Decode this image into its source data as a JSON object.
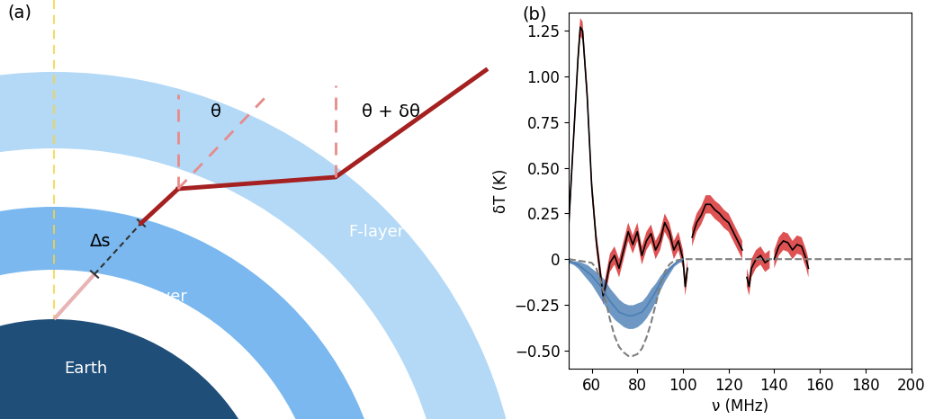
{
  "diagram": {
    "label": "(a)",
    "texts": {
      "earth": "Earth",
      "d_layer": "D-layer",
      "f_layer": "F-layer",
      "path_length": "Δs",
      "angle_in": "θ",
      "angle_out": "θ + δθ"
    }
  },
  "chart_data": {
    "label": "(b)",
    "type": "line",
    "x_label": "ν (MHz)",
    "y_label": "δT (K)",
    "xlim": [
      50,
      200
    ],
    "ylim": [
      -0.6,
      1.35
    ],
    "xticks": [
      60,
      80,
      100,
      120,
      140,
      160,
      180,
      200
    ],
    "yticks": [
      {
        "value": -0.5,
        "label": "−0.50"
      },
      {
        "value": -0.25,
        "label": "−0.25"
      },
      0,
      {
        "value": 0.25,
        "label": "0.25"
      },
      {
        "value": 0.5,
        "label": "0.50"
      },
      {
        "value": 0.75,
        "label": "0.75"
      },
      {
        "value": 1.0,
        "label": "1.00"
      },
      {
        "value": 1.25,
        "label": "1.25"
      }
    ],
    "series": [
      {
        "type": "line",
        "color": "#d62728",
        "error": 0.05,
        "x": [
          50,
          52,
          54,
          55,
          56,
          58,
          60,
          62,
          64,
          65,
          66,
          68,
          70,
          72,
          74,
          76,
          78,
          80,
          82,
          84,
          86,
          88,
          90,
          92,
          94,
          96,
          98,
          100,
          101,
          102,
          103,
          104,
          106,
          108,
          110,
          112,
          114,
          116,
          118,
          120,
          122,
          124,
          126,
          127,
          128,
          129,
          130,
          132,
          134,
          136,
          138,
          139,
          140,
          142,
          144,
          146,
          148,
          150,
          152,
          154,
          155
        ],
        "values": [
          0.2,
          0.65,
          1.1,
          1.27,
          1.25,
          0.9,
          0.4,
          0.1,
          -0.1,
          -0.2,
          -0.15,
          -0.02,
          0.02,
          -0.05,
          0.05,
          0.15,
          0.08,
          0.15,
          0.02,
          0.1,
          0.14,
          0.05,
          0.1,
          0.2,
          0.15,
          0.05,
          0.1,
          0.0,
          -0.15,
          -0.05,
          null,
          0.12,
          0.2,
          0.24,
          0.3,
          0.3,
          0.27,
          0.25,
          0.22,
          0.2,
          0.15,
          0.1,
          0.05,
          null,
          -0.1,
          -0.15,
          -0.05,
          0.0,
          0.02,
          -0.02,
          0.0,
          null,
          0.0,
          0.07,
          0.1,
          0.09,
          0.05,
          0.08,
          0.07,
          0.0,
          -0.05
        ]
      },
      {
        "type": "line",
        "color": "#4a7fb5",
        "x": [
          50,
          52,
          54,
          56,
          58,
          60,
          62,
          64,
          66,
          68,
          70,
          72,
          74,
          76,
          78,
          80,
          82,
          84,
          86,
          88,
          90,
          92,
          94,
          96,
          98,
          100
        ],
        "values": [
          -0.01,
          -0.02,
          -0.03,
          -0.05,
          -0.07,
          -0.09,
          -0.12,
          -0.15,
          -0.19,
          -0.23,
          -0.26,
          -0.29,
          -0.3,
          -0.31,
          -0.31,
          -0.3,
          -0.29,
          -0.26,
          -0.22,
          -0.18,
          -0.13,
          -0.09,
          -0.06,
          -0.03,
          -0.01,
          0.0
        ],
        "lower": [
          -0.02,
          -0.03,
          -0.05,
          -0.08,
          -0.11,
          -0.14,
          -0.18,
          -0.22,
          -0.26,
          -0.3,
          -0.33,
          -0.35,
          -0.37,
          -0.38,
          -0.38,
          -0.37,
          -0.35,
          -0.32,
          -0.28,
          -0.23,
          -0.17,
          -0.12,
          -0.08,
          -0.04,
          -0.02,
          -0.01
        ],
        "upper": [
          0.0,
          -0.01,
          -0.01,
          -0.02,
          -0.03,
          -0.05,
          -0.07,
          -0.09,
          -0.12,
          -0.16,
          -0.19,
          -0.22,
          -0.24,
          -0.25,
          -0.25,
          -0.24,
          -0.23,
          -0.2,
          -0.16,
          -0.13,
          -0.09,
          -0.06,
          -0.04,
          -0.02,
          0.0,
          0.0
        ]
      },
      {
        "type": "line",
        "color": "#7f7f7f",
        "line_style": "dashed",
        "x": [
          50,
          60,
          62,
          64,
          66,
          68,
          70,
          72,
          74,
          76,
          78,
          80,
          82,
          84,
          86,
          88,
          90,
          92,
          94,
          96,
          100,
          200
        ],
        "values": [
          0,
          -0.02,
          -0.05,
          -0.12,
          -0.22,
          -0.33,
          -0.42,
          -0.48,
          -0.51,
          -0.53,
          -0.53,
          -0.52,
          -0.49,
          -0.43,
          -0.35,
          -0.25,
          -0.15,
          -0.07,
          -0.03,
          -0.01,
          0,
          0
        ]
      }
    ]
  }
}
